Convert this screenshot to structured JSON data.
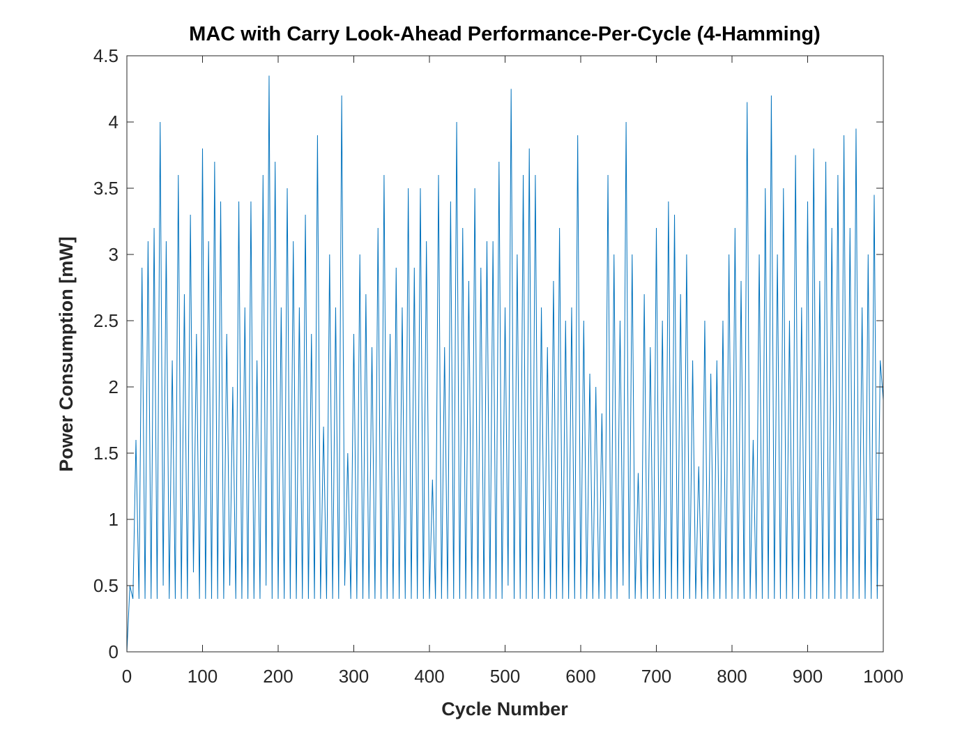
{
  "chart_data": {
    "type": "line",
    "title": "MAC with Carry Look-Ahead Performance-Per-Cycle (4-Hamming)",
    "x_label": "Cycle Number",
    "y_label": "Power Consumption [mW]",
    "xlim": [
      0,
      1000
    ],
    "ylim": [
      0,
      4.5
    ],
    "xticks": [
      0,
      100,
      200,
      300,
      400,
      500,
      600,
      700,
      800,
      900,
      1000
    ],
    "yticks": [
      0,
      0.5,
      1,
      1.5,
      2,
      2.5,
      3,
      3.5,
      4,
      4.5
    ],
    "grid": false,
    "x": [
      0,
      4,
      8,
      12,
      16,
      20,
      24,
      28,
      32,
      36,
      40,
      44,
      48,
      52,
      56,
      60,
      64,
      68,
      72,
      76,
      80,
      84,
      88,
      92,
      96,
      100,
      104,
      108,
      112,
      116,
      120,
      124,
      128,
      132,
      136,
      140,
      144,
      148,
      152,
      156,
      160,
      164,
      168,
      172,
      176,
      180,
      184,
      188,
      192,
      196,
      200,
      204,
      208,
      212,
      216,
      220,
      224,
      228,
      232,
      236,
      240,
      244,
      248,
      252,
      256,
      260,
      264,
      268,
      272,
      276,
      280,
      284,
      288,
      292,
      296,
      300,
      304,
      308,
      312,
      316,
      320,
      324,
      328,
      332,
      336,
      340,
      344,
      348,
      352,
      356,
      360,
      364,
      368,
      372,
      376,
      380,
      384,
      388,
      392,
      396,
      400,
      404,
      408,
      412,
      416,
      420,
      424,
      428,
      432,
      436,
      440,
      444,
      448,
      452,
      456,
      460,
      464,
      468,
      472,
      476,
      480,
      484,
      488,
      492,
      496,
      500,
      504,
      508,
      512,
      516,
      520,
      524,
      528,
      532,
      536,
      540,
      544,
      548,
      552,
      556,
      560,
      564,
      568,
      572,
      576,
      580,
      584,
      588,
      592,
      596,
      600,
      604,
      608,
      612,
      616,
      620,
      624,
      628,
      632,
      636,
      640,
      644,
      648,
      652,
      656,
      660,
      664,
      668,
      672,
      676,
      680,
      684,
      688,
      692,
      696,
      700,
      704,
      708,
      712,
      716,
      720,
      724,
      728,
      732,
      736,
      740,
      744,
      748,
      752,
      756,
      760,
      764,
      768,
      772,
      776,
      780,
      784,
      788,
      792,
      796,
      800,
      804,
      808,
      812,
      816,
      820,
      824,
      828,
      832,
      836,
      840,
      844,
      848,
      852,
      856,
      860,
      864,
      868,
      872,
      876,
      880,
      884,
      888,
      892,
      896,
      900,
      904,
      908,
      912,
      916,
      920,
      924,
      928,
      932,
      936,
      940,
      944,
      948,
      952,
      956,
      960,
      964,
      968,
      972,
      976,
      980,
      984,
      988,
      992,
      996,
      1000
    ],
    "series": [
      {
        "color": "#0072bd",
        "values": [
          0.0,
          0.5,
          0.4,
          1.6,
          0.4,
          2.9,
          0.4,
          3.1,
          0.4,
          3.2,
          0.4,
          4.0,
          0.5,
          3.1,
          0.4,
          2.2,
          0.4,
          3.6,
          0.4,
          2.7,
          0.4,
          3.3,
          0.6,
          2.4,
          0.4,
          3.8,
          0.4,
          3.1,
          0.4,
          3.7,
          0.4,
          3.4,
          0.4,
          2.4,
          0.5,
          2.0,
          0.4,
          3.4,
          0.4,
          2.6,
          0.4,
          3.4,
          0.4,
          2.2,
          0.4,
          3.6,
          0.5,
          4.35,
          0.4,
          3.7,
          0.4,
          2.6,
          0.4,
          3.5,
          0.4,
          3.1,
          0.4,
          2.6,
          0.4,
          3.3,
          0.4,
          2.4,
          0.4,
          3.9,
          0.4,
          1.7,
          0.4,
          3.0,
          0.4,
          2.6,
          0.4,
          4.2,
          0.5,
          1.5,
          0.4,
          2.4,
          0.4,
          3.0,
          0.4,
          2.7,
          0.4,
          2.3,
          0.4,
          3.2,
          0.4,
          3.6,
          0.4,
          2.4,
          0.4,
          2.9,
          0.4,
          2.6,
          0.4,
          3.5,
          0.4,
          2.9,
          0.4,
          3.5,
          0.4,
          3.1,
          0.4,
          1.3,
          0.4,
          3.6,
          0.4,
          2.3,
          0.4,
          3.4,
          0.4,
          4.0,
          0.4,
          3.2,
          0.4,
          2.8,
          0.4,
          3.5,
          0.4,
          2.9,
          0.4,
          3.1,
          0.4,
          3.1,
          0.4,
          3.7,
          0.4,
          2.6,
          0.5,
          4.25,
          0.4,
          3.0,
          0.4,
          3.6,
          0.4,
          3.8,
          0.4,
          3.6,
          0.4,
          2.6,
          0.4,
          2.3,
          0.4,
          2.8,
          0.4,
          3.2,
          0.4,
          2.5,
          0.4,
          2.6,
          0.4,
          3.9,
          0.4,
          2.5,
          0.4,
          2.1,
          0.4,
          2.0,
          0.4,
          1.8,
          0.4,
          3.6,
          0.4,
          3.0,
          0.4,
          2.5,
          0.5,
          4.0,
          0.4,
          3.0,
          0.4,
          1.35,
          0.4,
          2.7,
          0.4,
          2.3,
          0.4,
          3.2,
          0.4,
          2.5,
          0.4,
          3.4,
          0.4,
          3.3,
          0.4,
          2.7,
          0.4,
          3.0,
          0.4,
          2.2,
          0.4,
          1.4,
          0.4,
          2.5,
          0.4,
          2.1,
          0.4,
          2.2,
          0.4,
          2.5,
          0.4,
          3.0,
          0.4,
          3.2,
          0.4,
          2.8,
          0.4,
          4.15,
          0.4,
          1.6,
          0.4,
          3.0,
          0.4,
          3.5,
          0.4,
          4.2,
          0.4,
          3.0,
          0.4,
          3.5,
          0.4,
          2.5,
          0.4,
          3.75,
          0.4,
          2.6,
          0.4,
          3.4,
          0.4,
          3.8,
          0.4,
          2.8,
          0.4,
          3.7,
          0.4,
          3.2,
          0.4,
          3.6,
          0.4,
          3.9,
          0.4,
          3.2,
          0.4,
          3.95,
          0.4,
          2.6,
          0.4,
          3.0,
          0.4,
          3.45,
          0.4,
          2.2,
          1.9
        ]
      }
    ]
  }
}
